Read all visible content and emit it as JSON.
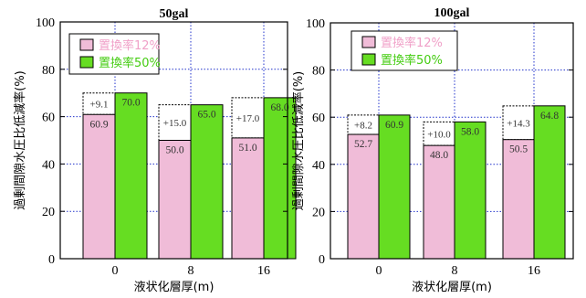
{
  "colors": {
    "series1": "#f0bcd8",
    "series2": "#66dd22",
    "legend1_text": "#f0a0c8",
    "legend2_text": "#44cc11",
    "grid": "#2233cc"
  },
  "chart_data": [
    {
      "type": "bar",
      "title": "50gal",
      "xlabel": "液状化層厚(m)",
      "ylabel": "過剰間隙水圧比低減率(%)",
      "categories": [
        "0",
        "8",
        "16"
      ],
      "ylim": [
        0,
        100
      ],
      "yticks": [
        "0",
        "20",
        "40",
        "60",
        "80",
        "100"
      ],
      "grid": true,
      "legend_position": "top-left",
      "series": [
        {
          "name": "置換率12%",
          "values": [
            60.9,
            50.0,
            51.0
          ],
          "labels": [
            "60.9",
            "50.0",
            "51.0"
          ],
          "increments": [
            9.1,
            15.0,
            17.0
          ],
          "increment_labels": [
            "+9.1",
            "+15.0",
            "+17.0"
          ]
        },
        {
          "name": "置換率50%",
          "values": [
            70.0,
            65.0,
            68.0
          ],
          "labels": [
            "70.0",
            "65.0",
            "68.0"
          ]
        }
      ]
    },
    {
      "type": "bar",
      "title": "100gal",
      "xlabel": "液状化層厚(m)",
      "ylabel": "過剰間隙水圧比低減率(%)",
      "categories": [
        "0",
        "8",
        "16"
      ],
      "ylim": [
        0,
        100
      ],
      "yticks": [
        "0",
        "20",
        "40",
        "60",
        "80",
        "100"
      ],
      "grid": true,
      "legend_position": "top-left",
      "series": [
        {
          "name": "置換率12%",
          "values": [
            52.7,
            48.0,
            50.5
          ],
          "labels": [
            "52.7",
            "48.0",
            "50.5"
          ],
          "increments": [
            8.2,
            10.0,
            14.3
          ],
          "increment_labels": [
            "+8.2",
            "+10.0",
            "+14.3"
          ]
        },
        {
          "name": "置換率50%",
          "values": [
            60.9,
            58.0,
            64.8
          ],
          "labels": [
            "60.9",
            "58.0",
            "64.8"
          ]
        }
      ]
    }
  ]
}
